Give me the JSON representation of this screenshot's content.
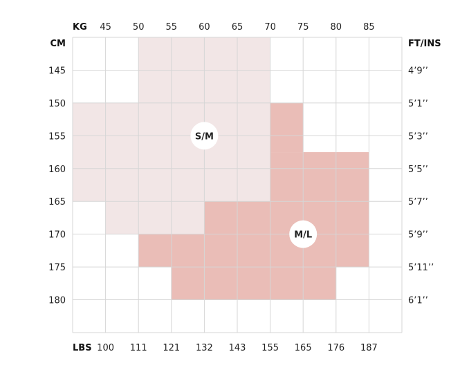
{
  "chart_data": {
    "type": "heatmap",
    "title": "",
    "axes": {
      "kg": {
        "label": "KG",
        "ticks": [
          "45",
          "50",
          "55",
          "60",
          "65",
          "70",
          "75",
          "80",
          "85"
        ]
      },
      "lbs": {
        "label": "LBS",
        "ticks": [
          "100",
          "111",
          "121",
          "132",
          "143",
          "155",
          "165",
          "176",
          "187"
        ]
      },
      "cm": {
        "label": "CM",
        "ticks": [
          "145",
          "150",
          "155",
          "160",
          "165",
          "170",
          "175",
          "180"
        ]
      },
      "ftin": {
        "label": "FT/INS",
        "ticks": [
          "4’9’’",
          "5’1’’",
          "5’3’’",
          "5’5’’",
          "5’7’’",
          "5’9’’",
          "5’11’’",
          "6’1’’"
        ]
      }
    },
    "x_range_kg": [
      40,
      90
    ],
    "y_range_cm": [
      140,
      185
    ],
    "grid": true,
    "regions": [
      {
        "name": "S/M",
        "color": "#f2e6e6",
        "badge_at": {
          "kg": 60,
          "cm": 155
        },
        "cells": [
          {
            "kg": [
              50,
              70
            ],
            "cm": [
              140,
              150
            ]
          },
          {
            "kg": [
              40,
              70
            ],
            "cm": [
              150,
              165
            ]
          },
          {
            "kg": [
              45,
              60
            ],
            "cm": [
              165,
              170
            ]
          }
        ]
      },
      {
        "name": "M/L",
        "color": "#eabdb7",
        "badge_at": {
          "kg": 75,
          "cm": 170
        },
        "cells": [
          {
            "kg": [
              70,
              75
            ],
            "cm": [
              150,
              157.5
            ]
          },
          {
            "kg": [
              70,
              85
            ],
            "cm": [
              157.5,
              165
            ]
          },
          {
            "kg": [
              60,
              85
            ],
            "cm": [
              165,
              170
            ]
          },
          {
            "kg": [
              50,
              85
            ],
            "cm": [
              170,
              175
            ]
          },
          {
            "kg": [
              55,
              80
            ],
            "cm": [
              175,
              180
            ]
          }
        ]
      }
    ]
  }
}
